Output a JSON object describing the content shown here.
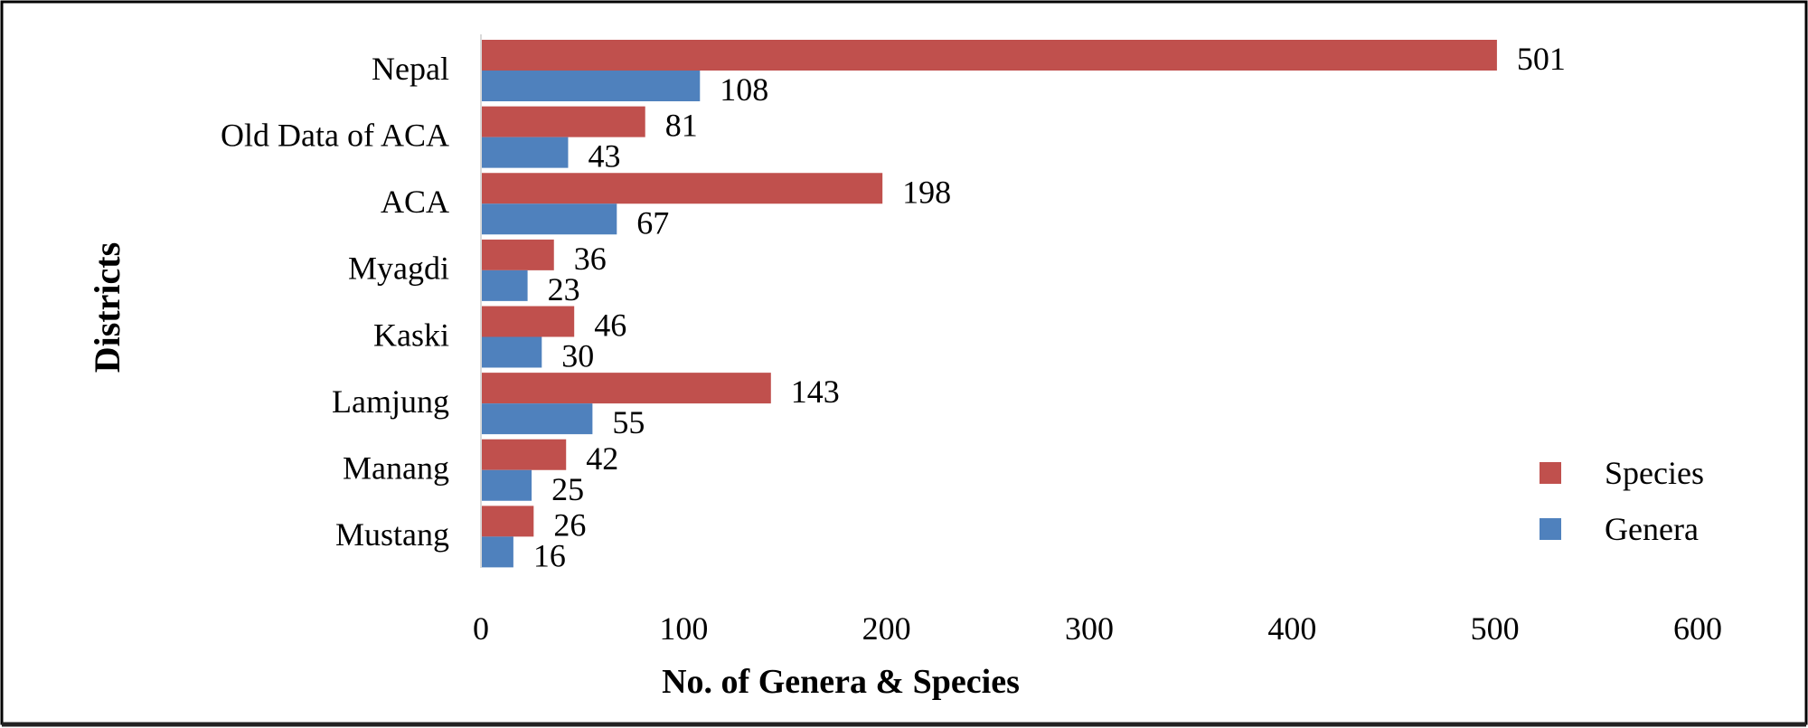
{
  "chart_data": {
    "type": "bar",
    "orientation": "horizontal",
    "title": "",
    "xlabel": "No. of Genera & Species",
    "ylabel": "Districts",
    "categories": [
      "Nepal",
      "Old Data of ACA",
      "ACA",
      "Myagdi",
      "Kaski",
      "Lamjung",
      "Manang",
      "Mustang"
    ],
    "series": [
      {
        "name": "Species",
        "color": "#C0504D",
        "values": [
          501,
          81,
          198,
          36,
          46,
          143,
          42,
          26
        ]
      },
      {
        "name": "Genera",
        "color": "#4F81BD",
        "values": [
          108,
          43,
          67,
          23,
          30,
          55,
          25,
          16
        ]
      }
    ],
    "xlim": [
      0,
      600
    ],
    "xticks": [
      0,
      100,
      200,
      300,
      400,
      500,
      600
    ],
    "grid": false,
    "legend_position": "bottom-right",
    "data_labels": true
  }
}
